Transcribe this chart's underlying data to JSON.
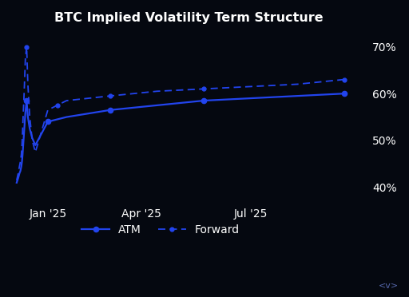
{
  "title": "BTC Implied Volatility Term Structure",
  "background_color": "#050810",
  "text_color": "#ffffff",
  "line_color": "#2244ee",
  "ylim": [
    37,
    73
  ],
  "yticks": [
    40,
    50,
    60,
    70
  ],
  "ytick_labels": [
    "40%",
    "50%",
    "60%",
    "70%"
  ],
  "xlabel_ticks": [
    "Jan '25",
    "Apr '25",
    "Jul '25"
  ],
  "atm_x": [
    0.0,
    0.05,
    0.09,
    0.12,
    0.15,
    0.17,
    0.19,
    0.21,
    0.23,
    0.25,
    0.28,
    0.32,
    0.36,
    0.42,
    0.5,
    0.6,
    1.0,
    1.3,
    1.6,
    3.0,
    4.5,
    6.0,
    7.5,
    9.0,
    10.5
  ],
  "atm_y": [
    41.0,
    42.0,
    43.0,
    43.5,
    44.5,
    45.5,
    47.0,
    49.0,
    51.0,
    53.0,
    56.0,
    58.5,
    55.0,
    52.5,
    50.5,
    49.0,
    54.0,
    54.5,
    55.0,
    56.5,
    57.5,
    58.5,
    59.0,
    59.5,
    60.0
  ],
  "fwd_x": [
    0.0,
    0.05,
    0.09,
    0.12,
    0.15,
    0.17,
    0.19,
    0.21,
    0.23,
    0.25,
    0.28,
    0.32,
    0.36,
    0.42,
    0.5,
    0.6,
    1.0,
    1.3,
    1.6,
    3.0,
    4.5,
    6.0,
    7.5,
    9.0,
    10.5
  ],
  "fwd_y": [
    41.5,
    43.0,
    44.5,
    45.5,
    47.0,
    49.0,
    52.0,
    55.5,
    58.5,
    62.0,
    67.5,
    70.0,
    62.0,
    55.0,
    50.0,
    47.5,
    56.5,
    57.5,
    58.5,
    59.5,
    60.5,
    61.0,
    61.5,
    62.0,
    63.0
  ],
  "atm_markers_x": [
    0.32,
    1.0,
    3.0,
    6.0,
    10.5
  ],
  "atm_markers_y": [
    58.5,
    54.0,
    56.5,
    58.5,
    60.0
  ],
  "fwd_markers_x": [
    0.32,
    1.3,
    3.0,
    6.0,
    10.5
  ],
  "fwd_markers_y": [
    70.0,
    57.5,
    59.5,
    61.0,
    63.0
  ],
  "jan25_x": 1.0,
  "apr25_x": 4.0,
  "jul25_x": 7.5,
  "xlim": [
    -0.15,
    11.2
  ],
  "legend_atm": "ATM",
  "legend_fwd": "Forward",
  "watermark": "<v>"
}
